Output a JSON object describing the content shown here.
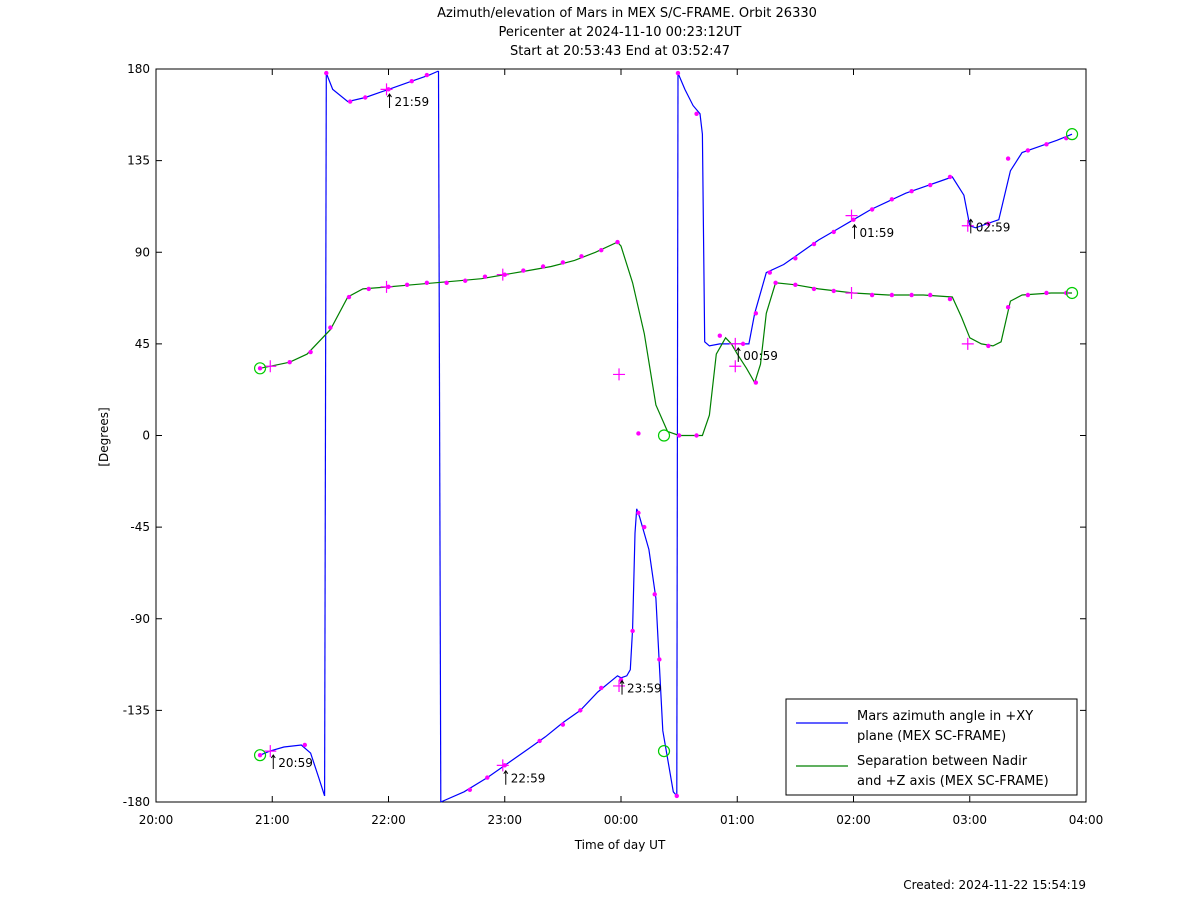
{
  "title_lines": [
    "Azimuth/elevation of Mars in MEX S/C-FRAME.  Orbit 26330",
    "Pericenter at 2024-11-10 00:23:12UT",
    "Start at 20:53:43 End at 03:52:47"
  ],
  "footer": "Created: 2024-11-22 15:54:19",
  "chart_data": {
    "type": "line",
    "xlabel": "Time of day UT",
    "ylabel": "[Degrees]",
    "xlim_hours": [
      20,
      28
    ],
    "ylim": [
      -180,
      180
    ],
    "x_ticks": [
      {
        "h": 20,
        "label": "20:00"
      },
      {
        "h": 21,
        "label": "21:00"
      },
      {
        "h": 22,
        "label": "22:00"
      },
      {
        "h": 23,
        "label": "23:00"
      },
      {
        "h": 24,
        "label": "00:00"
      },
      {
        "h": 25,
        "label": "01:00"
      },
      {
        "h": 26,
        "label": "02:00"
      },
      {
        "h": 27,
        "label": "03:00"
      },
      {
        "h": 28,
        "label": "04:00"
      }
    ],
    "y_ticks": [
      180,
      135,
      90,
      45,
      0,
      -45,
      -90,
      -135,
      -180
    ],
    "legend_position": "bottom-right",
    "series": [
      {
        "name": "Mars azimuth angle in +XY plane (MEX SC-FRAME)",
        "legend_lines": [
          "Mars azimuth angle in +XY",
          "plane (MEX SC-FRAME)"
        ],
        "color": "#0000ff",
        "segments": [
          [
            [
              20.895,
              -157
            ],
            [
              20.98,
              -155
            ],
            [
              21.1,
              -153
            ],
            [
              21.25,
              -152
            ],
            [
              21.33,
              -156
            ],
            [
              21.4,
              -168
            ],
            [
              21.45,
              -177
            ]
          ],
          [
            [
              21.45,
              -177
            ],
            [
              21.465,
              178
            ]
          ],
          [
            [
              21.465,
              178
            ],
            [
              21.52,
              170
            ],
            [
              21.65,
              164
            ],
            [
              21.8,
              166
            ],
            [
              22.0,
              170
            ],
            [
              22.2,
              174
            ],
            [
              22.35,
              177
            ],
            [
              22.43,
              179
            ]
          ],
          [
            [
              22.43,
              179
            ],
            [
              22.45,
              -180
            ]
          ],
          [
            [
              22.45,
              -180
            ],
            [
              22.65,
              -175
            ],
            [
              22.85,
              -168
            ],
            [
              23.0,
              -162
            ],
            [
              23.2,
              -154
            ],
            [
              23.35,
              -148
            ],
            [
              23.5,
              -141
            ],
            [
              23.65,
              -135
            ],
            [
              23.8,
              -126
            ],
            [
              23.97,
              -118
            ],
            [
              24.0,
              -119
            ],
            [
              24.05,
              -118
            ],
            [
              24.08,
              -115
            ],
            [
              24.1,
              -95
            ],
            [
              24.12,
              -48
            ],
            [
              24.135,
              -36
            ],
            [
              24.16,
              -40
            ],
            [
              24.24,
              -56
            ],
            [
              24.3,
              -80
            ],
            [
              24.33,
              -113
            ],
            [
              24.36,
              -145
            ],
            [
              24.45,
              -175
            ],
            [
              24.48,
              -177
            ]
          ],
          [
            [
              24.48,
              -177
            ],
            [
              24.49,
              178
            ]
          ],
          [
            [
              24.49,
              178
            ],
            [
              24.55,
              170
            ],
            [
              24.62,
              162
            ],
            [
              24.68,
              158
            ],
            [
              24.7,
              148
            ],
            [
              24.72,
              46
            ],
            [
              24.76,
              44
            ],
            [
              24.85,
              45
            ],
            [
              24.95,
              45
            ],
            [
              25.1,
              45
            ],
            [
              25.15,
              60
            ],
            [
              25.25,
              80
            ],
            [
              25.4,
              84
            ],
            [
              25.55,
              90
            ],
            [
              25.7,
              96
            ],
            [
              25.85,
              101
            ],
            [
              26.0,
              106
            ],
            [
              26.15,
              111
            ],
            [
              26.3,
              115
            ],
            [
              26.45,
              119
            ],
            [
              26.6,
              122
            ],
            [
              26.75,
              125
            ],
            [
              26.85,
              127
            ],
            [
              26.95,
              118
            ],
            [
              27.0,
              103
            ],
            [
              27.05,
              102
            ],
            [
              27.15,
              104
            ],
            [
              27.25,
              106
            ],
            [
              27.35,
              130
            ],
            [
              27.45,
              139
            ],
            [
              27.6,
              142
            ],
            [
              27.75,
              145
            ],
            [
              27.88,
              148
            ]
          ]
        ]
      },
      {
        "name": "Separation between Nadir and +Z axis (MEX SC-FRAME)",
        "legend_lines": [
          "Separation between Nadir",
          "and +Z axis (MEX SC-FRAME)"
        ],
        "color": "#008000",
        "segments": [
          [
            [
              20.895,
              33
            ],
            [
              20.98,
              34
            ],
            [
              21.15,
              36
            ],
            [
              21.3,
              40
            ],
            [
              21.5,
              52
            ],
            [
              21.65,
              68
            ],
            [
              21.78,
              72
            ],
            [
              22.0,
              73
            ],
            [
              22.2,
              74
            ],
            [
              22.4,
              75
            ],
            [
              22.6,
              76
            ],
            [
              22.8,
              77
            ],
            [
              23.0,
              79
            ],
            [
              23.2,
              81
            ],
            [
              23.4,
              83
            ],
            [
              23.6,
              86
            ],
            [
              23.78,
              90
            ],
            [
              23.97,
              95
            ],
            [
              24.0,
              93
            ],
            [
              24.1,
              75
            ],
            [
              24.2,
              50
            ],
            [
              24.3,
              15
            ],
            [
              24.4,
              2
            ],
            [
              24.5,
              0
            ],
            [
              24.7,
              0
            ],
            [
              24.76,
              10
            ],
            [
              24.82,
              40
            ],
            [
              24.9,
              48
            ],
            [
              24.95,
              45
            ],
            [
              25.0,
              40
            ],
            [
              25.08,
              33
            ],
            [
              25.15,
              26
            ],
            [
              25.2,
              35
            ],
            [
              25.25,
              60
            ],
            [
              25.33,
              75
            ],
            [
              25.5,
              74
            ],
            [
              25.7,
              72
            ],
            [
              26.0,
              70
            ],
            [
              26.3,
              69
            ],
            [
              26.6,
              69
            ],
            [
              26.85,
              68
            ],
            [
              26.93,
              58
            ],
            [
              27.0,
              48
            ],
            [
              27.1,
              45
            ],
            [
              27.2,
              44
            ],
            [
              27.27,
              46
            ],
            [
              27.35,
              66
            ],
            [
              27.45,
              69
            ],
            [
              27.7,
              70
            ],
            [
              27.88,
              70
            ]
          ]
        ]
      }
    ],
    "time_markers": [
      {
        "h": 20.983,
        "label": "20:59",
        "series": 0
      },
      {
        "h": 21.983,
        "label": "21:59",
        "series": 0
      },
      {
        "h": 22.983,
        "label": "22:59",
        "series": 0
      },
      {
        "h": 23.983,
        "label": "23:59",
        "series": 0
      },
      {
        "h": 24.983,
        "label": "00:59",
        "series": 0
      },
      {
        "h": 25.983,
        "label": "01:59",
        "series": 0
      },
      {
        "h": 26.983,
        "label": "02:59",
        "series": 0
      }
    ],
    "hour_marks_series1": [
      20.983,
      21.983,
      22.983,
      23.983,
      24.983,
      25.983,
      26.983
    ],
    "dots": [
      [
        20.895,
        -157
      ],
      [
        21.28,
        -152
      ],
      [
        21.465,
        178
      ],
      [
        21.67,
        164
      ],
      [
        21.8,
        166
      ],
      [
        22.0,
        170
      ],
      [
        22.2,
        174
      ],
      [
        22.33,
        177
      ],
      [
        22.7,
        -174
      ],
      [
        22.85,
        -168
      ],
      [
        23.0,
        -162
      ],
      [
        23.3,
        -150
      ],
      [
        23.5,
        -142
      ],
      [
        23.65,
        -135
      ],
      [
        23.83,
        -124
      ],
      [
        24.0,
        -120
      ],
      [
        24.1,
        -96
      ],
      [
        24.15,
        -38
      ],
      [
        24.2,
        -45
      ],
      [
        24.29,
        -78
      ],
      [
        24.33,
        -110
      ],
      [
        24.48,
        -177
      ],
      [
        24.49,
        178
      ],
      [
        24.65,
        158
      ],
      [
        25.05,
        45
      ],
      [
        25.16,
        60
      ],
      [
        25.28,
        80
      ],
      [
        25.5,
        87
      ],
      [
        25.66,
        94
      ],
      [
        25.83,
        100
      ],
      [
        26.0,
        106
      ],
      [
        26.16,
        111
      ],
      [
        26.33,
        116
      ],
      [
        26.5,
        120
      ],
      [
        26.66,
        123
      ],
      [
        26.83,
        127
      ],
      [
        27.16,
        104
      ],
      [
        27.33,
        136
      ],
      [
        27.5,
        140
      ],
      [
        27.66,
        143
      ],
      [
        27.83,
        146
      ],
      [
        20.895,
        33
      ],
      [
        21.15,
        36
      ],
      [
        21.33,
        41
      ],
      [
        21.5,
        53
      ],
      [
        21.66,
        68
      ],
      [
        21.83,
        72
      ],
      [
        22.0,
        73
      ],
      [
        22.16,
        74
      ],
      [
        22.33,
        75
      ],
      [
        22.5,
        75
      ],
      [
        22.66,
        76
      ],
      [
        22.83,
        78
      ],
      [
        23.0,
        79
      ],
      [
        23.16,
        81
      ],
      [
        23.33,
        83
      ],
      [
        23.5,
        85
      ],
      [
        23.66,
        88
      ],
      [
        23.83,
        91
      ],
      [
        23.97,
        95
      ],
      [
        24.15,
        1
      ],
      [
        24.5,
        0
      ],
      [
        24.65,
        0
      ],
      [
        24.85,
        49
      ],
      [
        25.16,
        26
      ],
      [
        25.33,
        75
      ],
      [
        25.5,
        74
      ],
      [
        25.66,
        72
      ],
      [
        25.83,
        71
      ],
      [
        26.16,
        69
      ],
      [
        26.33,
        69
      ],
      [
        26.5,
        69
      ],
      [
        26.66,
        69
      ],
      [
        26.83,
        67
      ],
      [
        27.16,
        44
      ],
      [
        27.33,
        63
      ],
      [
        27.5,
        69
      ],
      [
        27.66,
        70
      ],
      [
        27.83,
        70
      ]
    ],
    "crosses": [
      [
        20.983,
        -155
      ],
      [
        21.983,
        170
      ],
      [
        22.983,
        -162
      ],
      [
        23.983,
        -123
      ],
      [
        24.983,
        45
      ],
      [
        25.983,
        108
      ],
      [
        26.983,
        103
      ],
      [
        20.983,
        34
      ],
      [
        21.983,
        73
      ],
      [
        22.983,
        79
      ],
      [
        23.983,
        30
      ],
      [
        24.983,
        34
      ],
      [
        25.983,
        70
      ],
      [
        26.983,
        45
      ]
    ],
    "circles": [
      [
        20.895,
        -157
      ],
      [
        24.37,
        -155
      ],
      [
        27.88,
        148
      ],
      [
        20.895,
        33
      ],
      [
        24.37,
        0
      ],
      [
        27.88,
        70
      ]
    ]
  }
}
